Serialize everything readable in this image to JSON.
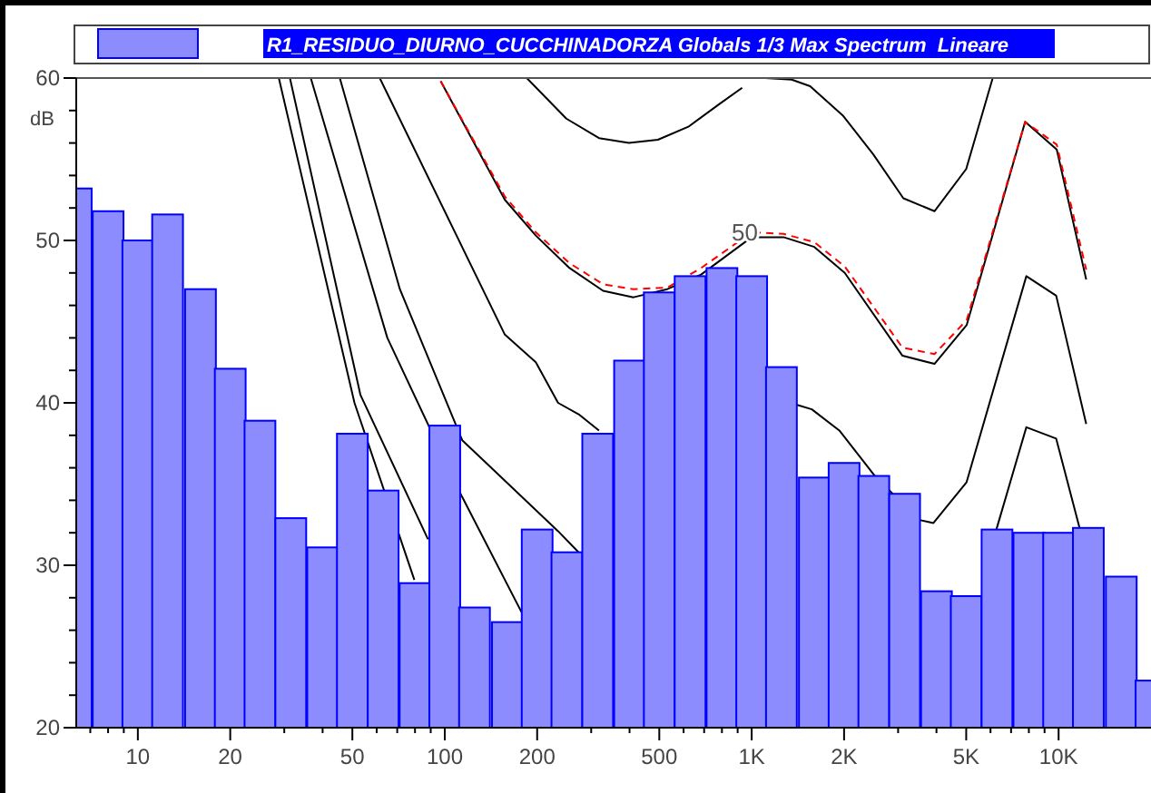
{
  "chart_data": {
    "type": "bar",
    "ylabel": "dB",
    "log": "x",
    "legend": "top",
    "grid": false,
    "xlim": [
      6.3,
      20000
    ],
    "ylim": [
      20,
      60
    ],
    "xticks": [
      {
        "value": 7,
        "label": null
      },
      {
        "value": 8,
        "label": null
      },
      {
        "value": 9,
        "label": null
      },
      10,
      20,
      {
        "value": 30,
        "label": null
      },
      {
        "value": 40,
        "label": null
      },
      50,
      {
        "value": 60,
        "label": null
      },
      {
        "value": 70,
        "label": null
      },
      {
        "value": 80,
        "label": null
      },
      {
        "value": 90,
        "label": null
      },
      100,
      200,
      {
        "value": 300,
        "label": null
      },
      {
        "value": 400,
        "label": null
      },
      500,
      {
        "value": 600,
        "label": null
      },
      {
        "value": 700,
        "label": null
      },
      {
        "value": 800,
        "label": null
      },
      {
        "value": 900,
        "label": null
      },
      {
        "value": 1000,
        "label": "1K"
      },
      {
        "value": 2000,
        "label": "2K"
      },
      {
        "value": 3000,
        "label": null
      },
      {
        "value": 4000,
        "label": null
      },
      {
        "value": 5000,
        "label": "5K"
      },
      {
        "value": 6000,
        "label": null
      },
      {
        "value": 7000,
        "label": null
      },
      {
        "value": 8000,
        "label": null
      },
      {
        "value": 9000,
        "label": null
      },
      {
        "value": 10000,
        "label": "10K"
      }
    ],
    "yticks": [
      20,
      {
        "value": 22,
        "label": null
      },
      {
        "value": 24,
        "label": null
      },
      {
        "value": 26,
        "label": null
      },
      {
        "value": 28,
        "label": null
      },
      30,
      {
        "value": 32,
        "label": null
      },
      {
        "value": 34,
        "label": null
      },
      {
        "value": 36,
        "label": null
      },
      {
        "value": 38,
        "label": null
      },
      40,
      {
        "value": 42,
        "label": null
      },
      {
        "value": 44,
        "label": null
      },
      {
        "value": 46,
        "label": null
      },
      {
        "value": 48,
        "label": null
      },
      50,
      {
        "value": 52,
        "label": null
      },
      {
        "value": 54,
        "label": null
      },
      {
        "value": 56,
        "label": null
      },
      {
        "value": 58,
        "label": null
      },
      60
    ],
    "annotations": [
      {
        "text": "50",
        "x": 950,
        "y": 50.5
      }
    ],
    "series": [
      {
        "name": "R1_RESIDUO_DIURNO_CUCCHINADORZA Globals 1/3 Max Spectrum  Lineare",
        "color": "#8c8cff",
        "x": [
          6.3,
          8,
          10,
          12.5,
          16,
          20,
          25,
          31.5,
          40,
          50,
          63,
          80,
          100,
          125,
          160,
          200,
          250,
          315,
          400,
          500,
          630,
          800,
          1000,
          1250,
          1600,
          2000,
          2500,
          3150,
          4000,
          5000,
          6300,
          8000,
          10000,
          12500,
          16000,
          20000
        ],
        "values": [
          53.2,
          51.8,
          50.0,
          51.6,
          47.0,
          42.1,
          38.9,
          32.9,
          31.1,
          38.1,
          34.6,
          28.9,
          38.6,
          27.4,
          26.5,
          32.2,
          30.8,
          38.1,
          42.6,
          46.8,
          47.8,
          48.3,
          47.8,
          42.2,
          35.4,
          36.3,
          35.5,
          34.4,
          28.4,
          28.1,
          32.2,
          32.0,
          32.0,
          32.3,
          29.3,
          22.9
        ]
      },
      {
        "type": "line",
        "color": "#000000",
        "line_style": "solid",
        "x": [
          28.8,
          50.8,
          79.6
        ],
        "values": [
          60,
          40,
          29.1
        ]
      },
      {
        "type": "line",
        "color": "#000000",
        "line_style": "solid",
        "x": [
          31.3,
          53.1,
          88.2
        ],
        "values": [
          60,
          40.5,
          31.6
        ]
      },
      {
        "type": "line",
        "color": "#000000",
        "line_style": "solid",
        "x": [
          36.6,
          65,
          114,
          178
        ],
        "values": [
          60,
          44,
          34.2,
          27.1
        ]
      },
      {
        "type": "line",
        "color": "#000000",
        "line_style": "solid",
        "x": [
          45.5,
          71.4,
          114,
          234,
          273,
          1000,
          6270,
          7850,
          9820,
          11700
        ],
        "values": [
          60,
          47,
          37.7,
          32.1,
          30.8,
          null,
          32.2,
          38.5,
          37.8,
          32.3
        ]
      },
      {
        "type": "line",
        "color": "#000000",
        "line_style": "solid",
        "x": [
          61.4,
          157,
          198,
          234,
          273,
          318,
          700,
          1390,
          1570,
          1930,
          2520,
          3500,
          3910,
          5010,
          7850,
          9820,
          12300
        ],
        "values": [
          60,
          44.2,
          42.5,
          40.0,
          39.3,
          38.3,
          null,
          39.9,
          39.6,
          38.3,
          35.5,
          32.8,
          32.6,
          35.1,
          47.8,
          46.6,
          38.7
        ]
      },
      {
        "type": "line",
        "color": "#000000",
        "line_style": "solid",
        "x": [
          97,
          157,
          198,
          255,
          328,
          412,
          531,
          684,
          1000,
          1270,
          1600,
          2010,
          3100,
          3940,
          5020,
          7780,
          9860,
          12300
        ],
        "values": [
          59.8,
          52.5,
          50.3,
          48.3,
          46.9,
          46.5,
          47.0,
          47.9,
          50.2,
          50.2,
          49.6,
          48.0,
          42.9,
          42.4,
          44.8,
          57.3,
          55.6,
          47.6
        ]
      },
      {
        "type": "line",
        "color": "#ff0000",
        "line_style": "dashed",
        "x": [
          97,
          157,
          198,
          255,
          328,
          412,
          531,
          684,
          1000,
          1270,
          1600,
          2010,
          3100,
          3940,
          5020,
          7780,
          9860,
          12300
        ],
        "values": [
          59.8,
          52.7,
          50.5,
          48.6,
          47.3,
          47.0,
          47.1,
          48.3,
          50.5,
          50.4,
          49.9,
          48.4,
          43.4,
          43.0,
          45.1,
          57.3,
          55.9,
          48.2
        ]
      },
      {
        "type": "line",
        "color": "#000000",
        "line_style": "solid",
        "x": [
          185,
          249,
          318,
          398,
          495,
          622,
          785,
          931,
          1000,
          1107,
          1350,
          1550,
          1980,
          2490,
          3120,
          3940,
          5000,
          6100
        ],
        "values": [
          60,
          57.5,
          56.3,
          56.0,
          56.2,
          57.0,
          58.4,
          59.4,
          null,
          60,
          59.9,
          59.5,
          57.7,
          55.3,
          52.6,
          51.8,
          54.4,
          60
        ]
      }
    ]
  }
}
